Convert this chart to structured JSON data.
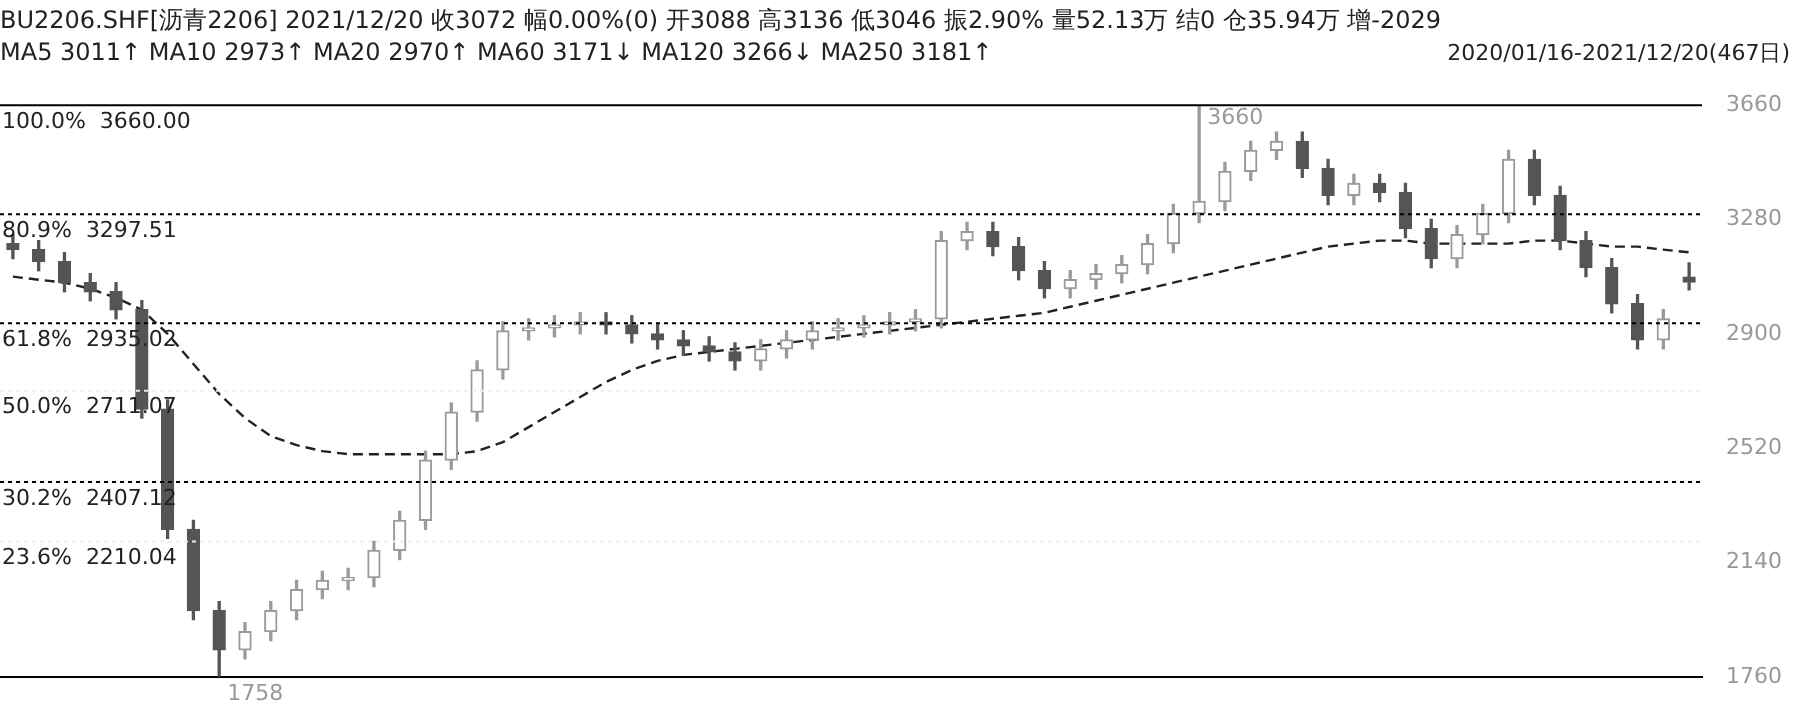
{
  "chart_data": {
    "type": "candlestick",
    "categories": [
      null,
      null,
      null,
      null,
      null,
      null,
      null,
      null,
      null,
      null,
      null,
      null,
      null,
      null,
      null,
      null,
      null,
      null,
      null,
      null,
      null,
      null,
      null,
      null,
      null,
      null,
      null,
      null,
      null,
      null,
      null,
      null,
      null,
      null,
      null,
      null,
      null,
      null,
      null,
      null,
      null,
      null,
      null,
      null,
      null,
      null,
      null,
      null,
      null,
      null,
      null,
      null,
      null,
      null,
      null,
      null,
      null,
      null,
      null,
      null,
      null,
      null,
      null,
      null,
      null,
      null
    ],
    "ohlc": [
      [
        3200,
        3230,
        3150,
        3180
      ],
      [
        3180,
        3210,
        3110,
        3140
      ],
      [
        3140,
        3170,
        3040,
        3070
      ],
      [
        3070,
        3100,
        3010,
        3040
      ],
      [
        3040,
        3070,
        2950,
        2980
      ],
      [
        2980,
        3010,
        2620,
        2650
      ],
      [
        2650,
        2680,
        2220,
        2250
      ],
      [
        2250,
        2280,
        1950,
        1980
      ],
      [
        1980,
        2010,
        1758,
        1850
      ],
      [
        1850,
        1940,
        1820,
        1910
      ],
      [
        1910,
        2010,
        1880,
        1980
      ],
      [
        1980,
        2080,
        1950,
        2050
      ],
      [
        2050,
        2110,
        2020,
        2080
      ],
      [
        2080,
        2120,
        2050,
        2090
      ],
      [
        2090,
        2210,
        2060,
        2180
      ],
      [
        2180,
        2310,
        2150,
        2280
      ],
      [
        2280,
        2510,
        2250,
        2480
      ],
      [
        2480,
        2670,
        2450,
        2640
      ],
      [
        2640,
        2810,
        2610,
        2780
      ],
      [
        2780,
        2940,
        2750,
        2910
      ],
      [
        2910,
        2950,
        2880,
        2920
      ],
      [
        2920,
        2960,
        2890,
        2930
      ],
      [
        2930,
        2970,
        2900,
        2940
      ],
      [
        2940,
        2970,
        2900,
        2930
      ],
      [
        2930,
        2960,
        2870,
        2900
      ],
      [
        2900,
        2930,
        2850,
        2880
      ],
      [
        2880,
        2910,
        2830,
        2860
      ],
      [
        2860,
        2890,
        2810,
        2840
      ],
      [
        2840,
        2870,
        2780,
        2810
      ],
      [
        2810,
        2880,
        2780,
        2850
      ],
      [
        2850,
        2910,
        2820,
        2880
      ],
      [
        2880,
        2940,
        2850,
        2910
      ],
      [
        2910,
        2950,
        2880,
        2920
      ],
      [
        2920,
        2960,
        2890,
        2930
      ],
      [
        2930,
        2970,
        2900,
        2940
      ],
      [
        2940,
        2980,
        2910,
        2950
      ],
      [
        2950,
        3240,
        2920,
        3210
      ],
      [
        3210,
        3270,
        3180,
        3240
      ],
      [
        3240,
        3270,
        3160,
        3190
      ],
      [
        3190,
        3220,
        3080,
        3110
      ],
      [
        3110,
        3140,
        3020,
        3050
      ],
      [
        3050,
        3110,
        3020,
        3080
      ],
      [
        3080,
        3130,
        3050,
        3100
      ],
      [
        3100,
        3160,
        3070,
        3130
      ],
      [
        3130,
        3230,
        3100,
        3200
      ],
      [
        3200,
        3330,
        3170,
        3300
      ],
      [
        3300,
        3660,
        3270,
        3340
      ],
      [
        3340,
        3470,
        3310,
        3440
      ],
      [
        3440,
        3540,
        3410,
        3510
      ],
      [
        3510,
        3570,
        3480,
        3540
      ],
      [
        3540,
        3570,
        3420,
        3450
      ],
      [
        3450,
        3480,
        3330,
        3360
      ],
      [
        3360,
        3430,
        3330,
        3400
      ],
      [
        3400,
        3430,
        3340,
        3370
      ],
      [
        3370,
        3400,
        3220,
        3250
      ],
      [
        3250,
        3280,
        3120,
        3150
      ],
      [
        3150,
        3260,
        3120,
        3230
      ],
      [
        3230,
        3330,
        3200,
        3300
      ],
      [
        3300,
        3510,
        3270,
        3480
      ],
      [
        3480,
        3510,
        3330,
        3360
      ],
      [
        3360,
        3390,
        3180,
        3210
      ],
      [
        3210,
        3240,
        3090,
        3120
      ],
      [
        3120,
        3150,
        2970,
        3000
      ],
      [
        3000,
        3030,
        2850,
        2880
      ],
      [
        2880,
        2980,
        2850,
        2950
      ],
      [
        3088,
        3136,
        3046,
        3072
      ]
    ],
    "series": [
      {
        "type": "line",
        "color": "#222222",
        "line_style": "dashed",
        "values": [
          3090,
          3080,
          3070,
          3050,
          3020,
          2980,
          2900,
          2800,
          2700,
          2620,
          2560,
          2530,
          2510,
          2500,
          2500,
          2500,
          2500,
          2500,
          2510,
          2540,
          2590,
          2640,
          2690,
          2740,
          2780,
          2810,
          2830,
          2840,
          2850,
          2860,
          2870,
          2880,
          2890,
          2900,
          2910,
          2920,
          2930,
          2940,
          2950,
          2960,
          2970,
          2990,
          3010,
          3030,
          3050,
          3070,
          3090,
          3110,
          3130,
          3150,
          3170,
          3190,
          3200,
          3210,
          3210,
          3200,
          3200,
          3200,
          3200,
          3210,
          3210,
          3200,
          3190,
          3190,
          3180,
          3171
        ]
      }
    ],
    "ylim": [
      1760,
      3660
    ],
    "yticks": [
      1760,
      2140,
      2520,
      2900,
      3280,
      3660
    ],
    "grid": false,
    "legend": false,
    "tick_labels": "y",
    "ref_lines": [
      {
        "axis": "y",
        "value": 3660,
        "label": "100.0%  3660.00",
        "color": "#000000",
        "line_style": "solid"
      },
      {
        "axis": "y",
        "value": 3297.51,
        "label": "80.9%  3297.51",
        "color": "#000000",
        "line_style": "dotted"
      },
      {
        "axis": "y",
        "value": 2935.02,
        "label": "61.8%  2935.02",
        "color": "#000000",
        "line_style": "dotted"
      },
      {
        "axis": "y",
        "value": 2711.07,
        "label": "50.0%  2711.07",
        "color": "#eeeeee",
        "line_style": "dotted"
      },
      {
        "axis": "y",
        "value": 2407.12,
        "label": "30.2%  2407.12",
        "color": "#000000",
        "line_style": "dotted"
      },
      {
        "axis": "y",
        "value": 2210.04,
        "label": "23.6%  2210.04",
        "color": "#eeeeee",
        "line_style": "dotted"
      }
    ],
    "annotations": [
      "BU2206.SHF[沥青2206]  2021/12/20  收3072  幅0.00%(0)  开3088  高3136  低3046  振2.90%  量52.13万  结0  仓35.94万  增-2029",
      "MA5 3011↑  MA10 2973↑  MA20 2970↑  MA60 3171↓  MA120 3266↓  MA250 3181↑",
      "2020/01/16-2021/12/20(467日)",
      "3660",
      "1758"
    ]
  }
}
